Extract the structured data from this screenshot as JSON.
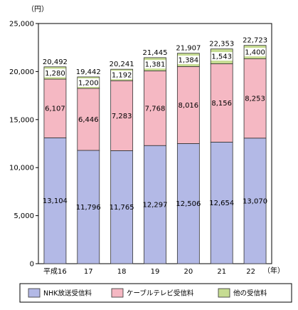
{
  "chart_data": {
    "type": "bar",
    "stacked": true,
    "y_unit_label": "（円）",
    "x_unit_label": "（年）",
    "categories": [
      "平成16",
      "17",
      "18",
      "19",
      "20",
      "21",
      "22"
    ],
    "series": [
      {
        "name": "NHK放送受信料",
        "color": "#b3b9e6",
        "values": [
          13104,
          11796,
          11765,
          12297,
          12506,
          12654,
          13070
        ],
        "labels": [
          "13,104",
          "11,796",
          "11,765",
          "12,297",
          "12,506",
          "12,654",
          "13,070"
        ]
      },
      {
        "name": "ケーブルテレビ受信料",
        "color": "#f5b8c3",
        "values": [
          6107,
          6446,
          7283,
          7768,
          8016,
          8156,
          8253
        ],
        "labels": [
          "6,107",
          "6,446",
          "7,283",
          "7,768",
          "8,016",
          "8,156",
          "8,253"
        ]
      },
      {
        "name": "他の受信料",
        "color": "#c6dc92",
        "values": [
          1280,
          1200,
          1192,
          1381,
          1384,
          1543,
          1400
        ],
        "labels": [
          "1,280",
          "1,200",
          "1,192",
          "1,381",
          "1,384",
          "1,543",
          "1,400"
        ]
      }
    ],
    "totals": [
      20492,
      19442,
      20241,
      21445,
      21907,
      22353,
      22723
    ],
    "total_labels": [
      "20,492",
      "19,442",
      "20,241",
      "21,445",
      "21,907",
      "22,353",
      "22,723"
    ],
    "ylim": [
      0,
      25000
    ],
    "yticks": [
      0,
      5000,
      10000,
      15000,
      20000,
      25000
    ],
    "ytick_labels": [
      "0",
      "5,000",
      "10,000",
      "15,000",
      "20,000",
      "25,000"
    ],
    "grid": false,
    "legend_position": "bottom"
  }
}
